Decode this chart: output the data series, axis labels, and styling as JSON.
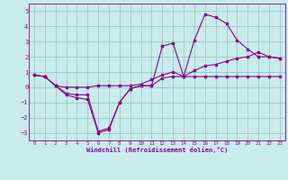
{
  "xlabel": "Windchill (Refroidissement éolien,°C)",
  "x": [
    0,
    1,
    2,
    3,
    4,
    5,
    6,
    7,
    8,
    9,
    10,
    11,
    12,
    13,
    14,
    15,
    16,
    17,
    18,
    19,
    20,
    21,
    22,
    23
  ],
  "line_flat": [
    0.8,
    0.7,
    0.1,
    0.0,
    0.0,
    0.0,
    0.1,
    0.1,
    0.1,
    0.1,
    0.2,
    0.5,
    0.8,
    1.0,
    0.7,
    1.1,
    1.4,
    1.5,
    1.7,
    1.9,
    2.0,
    2.3,
    2.0,
    1.9
  ],
  "line_peak": [
    0.8,
    0.7,
    0.1,
    -0.4,
    -0.5,
    -0.5,
    -2.9,
    -2.7,
    -1.0,
    -0.1,
    0.1,
    0.1,
    2.7,
    2.9,
    0.7,
    3.1,
    4.8,
    4.6,
    4.2,
    3.1,
    2.5,
    2.0,
    2.0,
    1.9
  ],
  "line_dip": [
    0.8,
    0.7,
    0.1,
    -0.5,
    -0.7,
    -0.8,
    -3.0,
    -2.8,
    -1.0,
    -0.1,
    0.1,
    0.1,
    0.6,
    0.7,
    0.7,
    0.7,
    0.7,
    0.7,
    0.7,
    0.7,
    0.7,
    0.7,
    0.7,
    0.7
  ],
  "line_color": "#880088",
  "bg_color": "#c8ecec",
  "grid_color": "#99bbbb",
  "ylim": [
    -3.5,
    5.5
  ],
  "xlim": [
    -0.5,
    23.5
  ],
  "yticks": [
    -3,
    -2,
    -1,
    0,
    1,
    2,
    3,
    4,
    5
  ],
  "xticks": [
    0,
    1,
    2,
    3,
    4,
    5,
    6,
    7,
    8,
    9,
    10,
    11,
    12,
    13,
    14,
    15,
    16,
    17,
    18,
    19,
    20,
    21,
    22,
    23
  ]
}
